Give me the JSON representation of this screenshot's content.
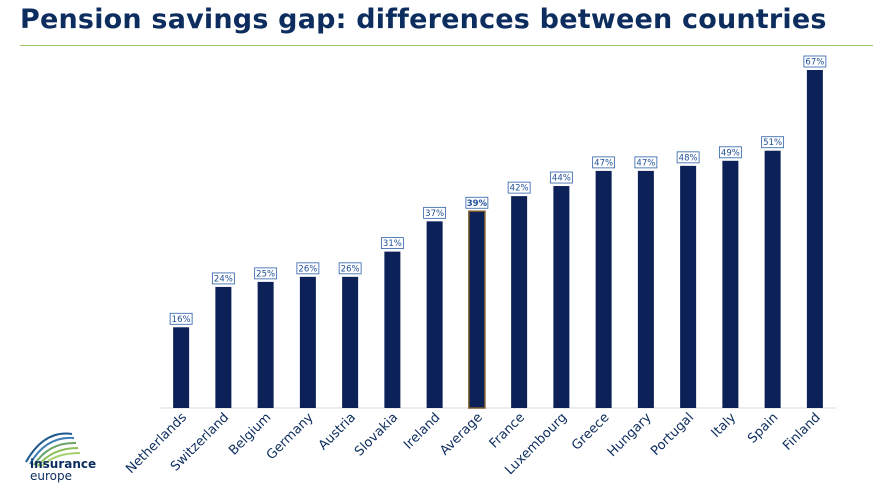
{
  "slide": {
    "title": "Pension savings gap: differences between countries"
  },
  "logo": {
    "line1": "insurance",
    "line2": "europe"
  },
  "colors": {
    "bar": "#0c2158",
    "highlight_outline": "#7a5a2a",
    "label_border": "#2a5fa8",
    "label_text": "#1f4f96",
    "axis": "#d9d9d9",
    "title": "#0c2d5e",
    "rule": "#9cc46c"
  },
  "chart_data": {
    "type": "bar",
    "categories": [
      "Netherlands",
      "Switzerland",
      "Belgium",
      "Germany",
      "Austria",
      "Slovakia",
      "Ireland",
      "Average",
      "France",
      "Luxembourg",
      "Greece",
      "Hungary",
      "Portugal",
      "Italy",
      "Spain",
      "Finland"
    ],
    "values": [
      16,
      24,
      25,
      26,
      26,
      31,
      37,
      39,
      42,
      44,
      47,
      47,
      48,
      49,
      51,
      67
    ],
    "data_labels": [
      "16%",
      "24%",
      "25%",
      "26%",
      "26%",
      "31%",
      "37%",
      "39%",
      "42%",
      "44%",
      "47%",
      "47%",
      "48%",
      "49%",
      "51%",
      "67%"
    ],
    "highlight_category": "Average",
    "unit": "%",
    "ylim": [
      0,
      67
    ],
    "grid": false,
    "legend": "none"
  }
}
